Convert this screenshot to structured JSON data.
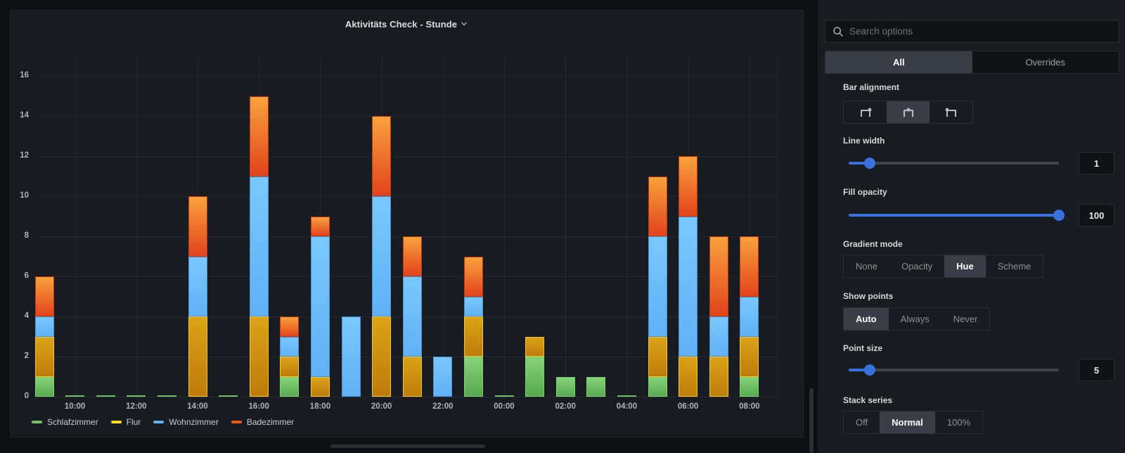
{
  "window": {
    "bg": "#0e0f13",
    "panel_bg": "#181b1f"
  },
  "panel": {
    "title": "Aktivitäts Check - Stunde"
  },
  "chart_data": {
    "type": "bar",
    "stacked": true,
    "stack_mode": "normal",
    "grid": true,
    "legend_position": "bottom",
    "title": "Aktivitäts Check - Stunde",
    "ylim": [
      0,
      16
    ],
    "y_ticks": [
      0,
      2,
      4,
      6,
      8,
      10,
      12,
      14,
      16
    ],
    "x_tick_labels": [
      "10:00",
      "12:00",
      "14:00",
      "16:00",
      "18:00",
      "20:00",
      "22:00",
      "00:00",
      "02:00",
      "04:00",
      "06:00",
      "08:00"
    ],
    "hours": [
      "09:00",
      "10:00",
      "11:00",
      "12:00",
      "13:00",
      "14:00",
      "15:00",
      "16:00",
      "17:00",
      "18:00",
      "19:00",
      "20:00",
      "21:00",
      "22:00",
      "23:00",
      "00:00",
      "01:00",
      "02:00",
      "03:00",
      "04:00",
      "05:00",
      "06:00",
      "07:00",
      "08:00"
    ],
    "series": [
      {
        "name": "Schlafzimmer",
        "color": "#73bf69",
        "gradient": [
          "#58a94e",
          "#85d378"
        ],
        "border": "#7fd071",
        "values": [
          1,
          0,
          0,
          0,
          0,
          0,
          0,
          0,
          1,
          0,
          0,
          0,
          0,
          0,
          2,
          0,
          2,
          1,
          1,
          0,
          1,
          0,
          0,
          1
        ]
      },
      {
        "name": "Flur",
        "color": "#fade2a",
        "gradient": [
          "#bf7b0b",
          "#dba317"
        ],
        "border": "#efc92b",
        "values": [
          2,
          0,
          0,
          0,
          0,
          4,
          0,
          4,
          1,
          1,
          0,
          4,
          2,
          0,
          2,
          0,
          1,
          0,
          0,
          0,
          2,
          2,
          2,
          2
        ]
      },
      {
        "name": "Wohnzimmer",
        "color": "#64b0f2",
        "gradient": [
          "#60b1f6",
          "#79c8ff"
        ],
        "border": "#4b90da",
        "values": [
          1,
          0,
          0,
          0,
          0,
          3,
          0,
          7,
          1,
          7,
          4,
          6,
          4,
          2,
          1,
          0,
          0,
          0,
          0,
          0,
          5,
          7,
          2,
          2
        ]
      },
      {
        "name": "Badezimmer",
        "color": "#f25c0f",
        "gradient": [
          "#e2431c",
          "#f9a23d"
        ],
        "border": "#bf3a0e",
        "values": [
          2,
          0,
          0,
          0,
          0,
          3,
          0,
          4,
          1,
          1,
          0,
          4,
          2,
          0,
          2,
          0,
          0,
          0,
          0,
          0,
          3,
          3,
          4,
          3
        ]
      }
    ],
    "totals_by_hour": [
      6,
      0,
      0,
      0,
      0,
      10,
      0,
      15,
      4,
      9,
      4,
      14,
      8,
      2,
      7,
      0,
      3,
      1,
      1,
      0,
      11,
      12,
      8,
      8
    ]
  },
  "options_pane": {
    "search": {
      "placeholder": "Search options"
    },
    "tabs": [
      {
        "label": "All",
        "selected": true
      },
      {
        "label": "Overrides",
        "selected": false
      }
    ],
    "bar_alignment": {
      "label": "Bar alignment",
      "options": [
        "after",
        "center",
        "before"
      ],
      "selected": "center"
    },
    "line_width": {
      "label": "Line width",
      "value": "1",
      "fraction": 0.1
    },
    "fill_opacity": {
      "label": "Fill opacity",
      "value": "100",
      "fraction": 1
    },
    "gradient_mode": {
      "label": "Gradient mode",
      "options": [
        "None",
        "Opacity",
        "Hue",
        "Scheme"
      ],
      "selected": "Hue"
    },
    "show_points": {
      "label": "Show points",
      "options": [
        "Auto",
        "Always",
        "Never"
      ],
      "selected": "Auto"
    },
    "point_size": {
      "label": "Point size",
      "value": "5",
      "fraction": 0.1
    },
    "stack_series": {
      "label": "Stack series",
      "options": [
        "Off",
        "Normal",
        "100%"
      ],
      "selected": "Normal"
    }
  }
}
